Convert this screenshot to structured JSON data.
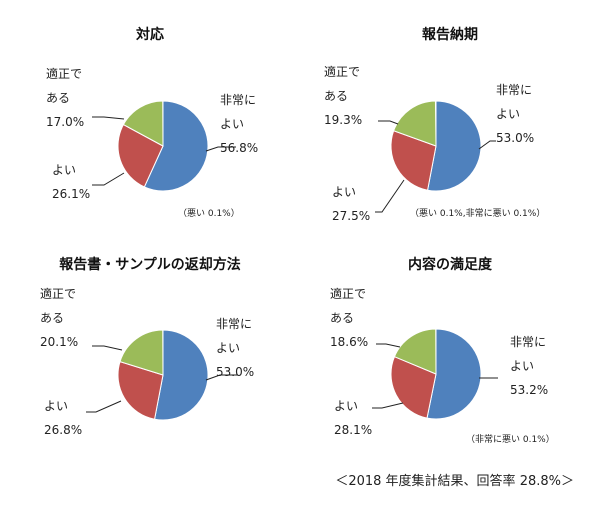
{
  "colors": {
    "very_good": "#4f81bd",
    "good": "#c0504d",
    "fair": "#9bbb59"
  },
  "chart_data": [
    {
      "type": "pie",
      "title": "対応",
      "slices": [
        {
          "label": "非常に\nよい",
          "value": 56.8,
          "value_text": "56.8%"
        },
        {
          "label": "よい",
          "value": 26.1,
          "value_text": "26.1%"
        },
        {
          "label": "適正で\nある",
          "value": 17.0,
          "value_text": "17.0%"
        }
      ],
      "note": "（悪い 0.1%）"
    },
    {
      "type": "pie",
      "title": "報告納期",
      "slices": [
        {
          "label": "非常に\nよい",
          "value": 53.0,
          "value_text": "53.0%"
        },
        {
          "label": "よい",
          "value": 27.5,
          "value_text": "27.5%"
        },
        {
          "label": "適正で\nある",
          "value": 19.3,
          "value_text": "19.3%"
        }
      ],
      "note": "（悪い 0.1%,非常に悪い 0.1%）"
    },
    {
      "type": "pie",
      "title": "報告書・サンプルの返却方法",
      "slices": [
        {
          "label": "非常に\nよい",
          "value": 53.0,
          "value_text": "53.0%"
        },
        {
          "label": "よい",
          "value": 26.8,
          "value_text": "26.8%"
        },
        {
          "label": "適正で\nある",
          "value": 20.1,
          "value_text": "20.1%"
        }
      ],
      "note": ""
    },
    {
      "type": "pie",
      "title": "内容の満足度",
      "slices": [
        {
          "label": "非常に\nよい",
          "value": 53.2,
          "value_text": "53.2%"
        },
        {
          "label": "よい",
          "value": 28.1,
          "value_text": "28.1%"
        },
        {
          "label": "適正で\nある",
          "value": 18.6,
          "value_text": "18.6%"
        }
      ],
      "note": "（非常に悪い 0.1%）"
    }
  ],
  "footer": "＜2018 年度集計結果、回答率 28.8%＞"
}
